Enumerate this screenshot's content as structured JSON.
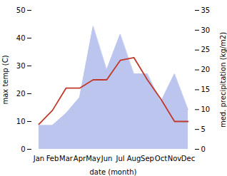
{
  "chart_data": {
    "type": "line",
    "categories": [
      "Jan",
      "Feb",
      "Mar",
      "Apr",
      "May",
      "Jun",
      "Jul",
      "Aug",
      "Sep",
      "Oct",
      "Nov",
      "Dec"
    ],
    "xlabel": "date (month)",
    "ylabel": "max temp (C)",
    "y2label": "med. precipitation (kg/m2)",
    "series": [
      {
        "type": "area",
        "axis": "y2",
        "color": "#bbc5ee",
        "values": [
          6,
          6,
          9,
          13,
          31,
          20,
          29,
          19,
          19,
          12,
          19,
          10
        ]
      },
      {
        "type": "line",
        "color": "#c0392b",
        "values": [
          9,
          14,
          22,
          22,
          25,
          25,
          32,
          33,
          25,
          18,
          10,
          10
        ]
      }
    ],
    "ylim": [
      0,
      50
    ],
    "yticks": [
      0,
      10,
      20,
      30,
      40,
      50
    ],
    "y2lim": [
      0,
      35
    ],
    "y2ticks": [
      0,
      5,
      10,
      15,
      20,
      25,
      30,
      35
    ]
  }
}
